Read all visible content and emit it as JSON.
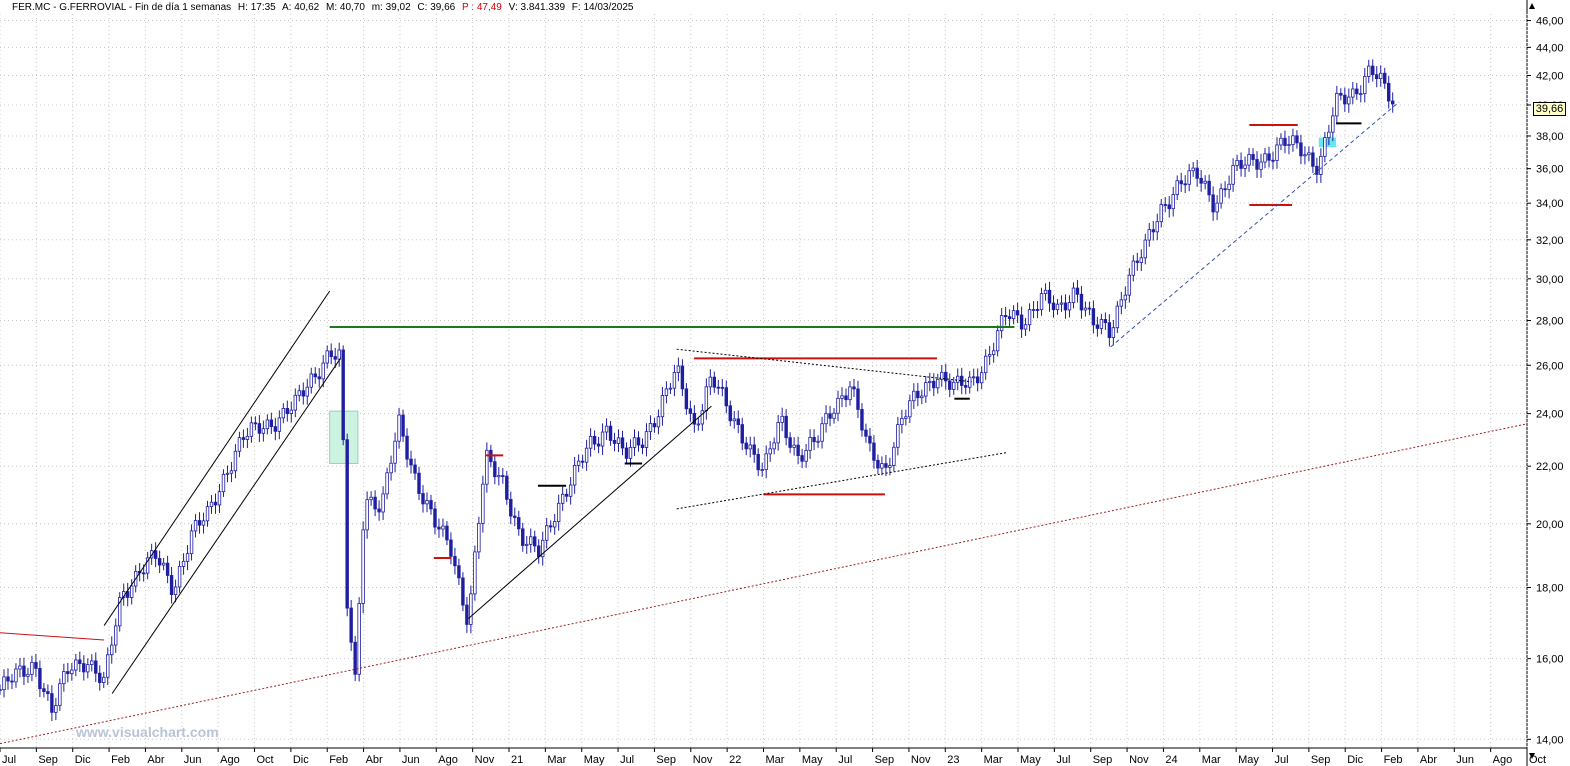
{
  "header": {
    "symbol": "FER.MC - G.FERROVIAL - Fin de día 1 semanas",
    "high": "H: 17:35",
    "open": "A: 40,62",
    "max": "M: 40,70",
    "min": "m: 39,02",
    "close": "C: 39,66",
    "change": "P : 47,49",
    "volume": "V: 3.841.339",
    "date": "F: 14/03/2025"
  },
  "watermark": "www.visualchart.com",
  "last_price_label": "39,66",
  "colors": {
    "candle": "#1e1ea0",
    "grid": "#c8c8c8",
    "support_red": "#cc1010",
    "resistance_green": "#1a7a1a",
    "trendline_black": "#000000",
    "dotted_red": "#a02020",
    "highlight_cyan": "#66e6f0",
    "highlight_green": "#ccf2e0"
  },
  "icons": {
    "scroll_up": "triangle-up-icon",
    "scroll_down": "triangle-down-icon"
  },
  "chart_data": {
    "type": "candlestick",
    "timeframe": "weekly",
    "y_scale": "log",
    "ylim": [
      13.8,
      46.5
    ],
    "y_ticks": [
      "14,00",
      "16,00",
      "18,00",
      "20,00",
      "22,00",
      "24,00",
      "26,00",
      "28,00",
      "30,00",
      "32,00",
      "34,00",
      "36,00",
      "38,00",
      "40,00",
      "42,00",
      "44,00",
      "46,00"
    ],
    "x_tick_labels": [
      "Jul",
      "Sep",
      "Dic",
      "Feb",
      "Abr",
      "Jun",
      "Ago",
      "Oct",
      "Dic",
      "Feb",
      "Abr",
      "Jun",
      "Ago",
      "Nov",
      "21",
      "Mar",
      "May",
      "Jul",
      "Sep",
      "Nov",
      "22",
      "Mar",
      "May",
      "Jul",
      "Sep",
      "Nov",
      "23",
      "Mar",
      "May",
      "Jul",
      "Sep",
      "Nov",
      "24",
      "Mar",
      "May",
      "Jul",
      "Sep",
      "Dic",
      "Feb",
      "Abr",
      "Jun",
      "Ago",
      "Oct"
    ],
    "x_range": [
      "2018-07",
      "2025-11"
    ],
    "price_path": [
      [
        "2018-07",
        15.2
      ],
      [
        "2018-09",
        15.9
      ],
      [
        "2018-10",
        14.6
      ],
      [
        "2018-11",
        15.8
      ],
      [
        "2018-12",
        16.0
      ],
      [
        "2019-01",
        15.3
      ],
      [
        "2019-02",
        17.8
      ],
      [
        "2019-03",
        18.5
      ],
      [
        "2019-04",
        18.9
      ],
      [
        "2019-05",
        18.0
      ],
      [
        "2019-06",
        19.6
      ],
      [
        "2019-07",
        20.3
      ],
      [
        "2019-08",
        21.8
      ],
      [
        "2019-09",
        23.0
      ],
      [
        "2019-10",
        23.5
      ],
      [
        "2019-11",
        23.8
      ],
      [
        "2019-12",
        24.3
      ],
      [
        "2020-01",
        25.5
      ],
      [
        "2020-02",
        26.6
      ],
      [
        "2020-02-20",
        26.2
      ],
      [
        "2020-03",
        17.5
      ],
      [
        "2020-03-16",
        15.3
      ],
      [
        "2020-04",
        21.0
      ],
      [
        "2020-05",
        20.5
      ],
      [
        "2020-06",
        23.6
      ],
      [
        "2020-07",
        21.5
      ],
      [
        "2020-08",
        20.0
      ],
      [
        "2020-09",
        19.2
      ],
      [
        "2020-10",
        17.0
      ],
      [
        "2020-11",
        22.2
      ],
      [
        "2020-12",
        21.5
      ],
      [
        "2021-01",
        19.5
      ],
      [
        "2021-02",
        19.0
      ],
      [
        "2021-03",
        20.5
      ],
      [
        "2021-04",
        21.5
      ],
      [
        "2021-05",
        22.8
      ],
      [
        "2021-06",
        23.5
      ],
      [
        "2021-07",
        22.3
      ],
      [
        "2021-08",
        23.0
      ],
      [
        "2021-09",
        24.2
      ],
      [
        "2021-10",
        25.7
      ],
      [
        "2021-11",
        23.5
      ],
      [
        "2021-12",
        25.5
      ],
      [
        "2022-01",
        24.0
      ],
      [
        "2022-02",
        23.0
      ],
      [
        "2022-03",
        21.7
      ],
      [
        "2022-04",
        23.8
      ],
      [
        "2022-05",
        22.4
      ],
      [
        "2022-06",
        22.8
      ],
      [
        "2022-07",
        24.3
      ],
      [
        "2022-08",
        25.2
      ],
      [
        "2022-09",
        22.6
      ],
      [
        "2022-10",
        21.9
      ],
      [
        "2022-11",
        23.8
      ],
      [
        "2022-12",
        24.8
      ],
      [
        "2023-01",
        25.7
      ],
      [
        "2023-02",
        25.0
      ],
      [
        "2023-03",
        25.3
      ],
      [
        "2023-04",
        26.5
      ],
      [
        "2023-05",
        28.2
      ],
      [
        "2023-06",
        28.0
      ],
      [
        "2023-07",
        29.2
      ],
      [
        "2023-08",
        28.3
      ],
      [
        "2023-09",
        29.6
      ],
      [
        "2023-10",
        27.8
      ],
      [
        "2023-11",
        27.4
      ],
      [
        "2023-12",
        30.2
      ],
      [
        "2024-01",
        31.5
      ],
      [
        "2024-02",
        33.8
      ],
      [
        "2024-03",
        35.3
      ],
      [
        "2024-04",
        35.5
      ],
      [
        "2024-05",
        34.0
      ],
      [
        "2024-06",
        35.8
      ],
      [
        "2024-07",
        36.3
      ],
      [
        "2024-08",
        36.8
      ],
      [
        "2024-09",
        37.5
      ],
      [
        "2024-10",
        37.2
      ],
      [
        "2024-11",
        36.2
      ],
      [
        "2024-12",
        40.0
      ],
      [
        "2025-01",
        40.8
      ],
      [
        "2025-02",
        42.6
      ],
      [
        "2025-03-14",
        39.66
      ]
    ],
    "annotations": [
      {
        "kind": "horizontal",
        "color": "green",
        "value": 27.7,
        "from": "2020-02",
        "to": "2023-05-15"
      },
      {
        "kind": "horizontal",
        "color": "red",
        "value": 26.3,
        "from": "2021-11",
        "to": "2023-01"
      },
      {
        "kind": "horizontal",
        "color": "red",
        "value": 21.0,
        "from": "2022-03",
        "to": "2022-10"
      },
      {
        "kind": "horizontal",
        "color": "red",
        "value": 18.9,
        "from": "2020-08",
        "to": "2020-09"
      },
      {
        "kind": "horizontal",
        "color": "red",
        "value": 22.4,
        "from": "2020-11",
        "to": "2020-12"
      },
      {
        "kind": "horizontal",
        "color": "black",
        "value": 21.3,
        "from": "2021-02",
        "to": "2021-03-20"
      },
      {
        "kind": "horizontal",
        "color": "black",
        "value": 22.1,
        "from": "2021-07",
        "to": "2021-08"
      },
      {
        "kind": "horizontal",
        "color": "black",
        "value": 24.6,
        "from": "2023-02",
        "to": "2023-02-28"
      },
      {
        "kind": "horizontal",
        "color": "red",
        "value": 38.7,
        "from": "2024-07",
        "to": "2024-09-25"
      },
      {
        "kind": "horizontal",
        "color": "red",
        "value": 33.9,
        "from": "2024-07",
        "to": "2024-09-15"
      },
      {
        "kind": "horizontal",
        "color": "black",
        "value": 38.8,
        "from": "2024-12",
        "to": "2025-01-15"
      },
      {
        "kind": "trend",
        "color": "red",
        "from": [
          "2018-07",
          16.7
        ],
        "to": [
          "2019-01",
          16.5
        ]
      },
      {
        "kind": "trend",
        "color": "black",
        "from": [
          "2019-01",
          16.9
        ],
        "to": [
          "2020-02-01",
          29.4
        ]
      },
      {
        "kind": "trend",
        "color": "black",
        "from": [
          "2019-01-15",
          15.1
        ],
        "to": [
          "2020-02-20",
          26.3
        ]
      },
      {
        "kind": "trend",
        "color": "black",
        "from": [
          "2020-10",
          17.1
        ],
        "to": [
          "2021-12-01",
          24.3
        ]
      },
      {
        "kind": "trend_dotted",
        "color": "black",
        "from": [
          "2021-10",
          26.7
        ],
        "to": [
          "2023-03",
          25.3
        ]
      },
      {
        "kind": "trend_dotted",
        "color": "black",
        "from": [
          "2021-10",
          20.5
        ],
        "to": [
          "2023-05",
          22.5
        ]
      },
      {
        "kind": "trend_dashed",
        "color": "blue",
        "from": [
          "2023-11",
          26.8
        ],
        "to": [
          "2025-03-20",
          40.2
        ]
      },
      {
        "kind": "trend_dotted",
        "color": "red",
        "from": [
          "2018-07",
          13.9
        ],
        "to": [
          "2025-11",
          23.6
        ]
      },
      {
        "kind": "box",
        "color": "green",
        "from": "2020-02",
        "to": "2020-03-20",
        "low": 22.1,
        "high": 24.1
      },
      {
        "kind": "box",
        "color": "cyan",
        "from": "2024-11",
        "to": "2024-12-01",
        "low": 37.3,
        "high": 37.9
      }
    ]
  }
}
